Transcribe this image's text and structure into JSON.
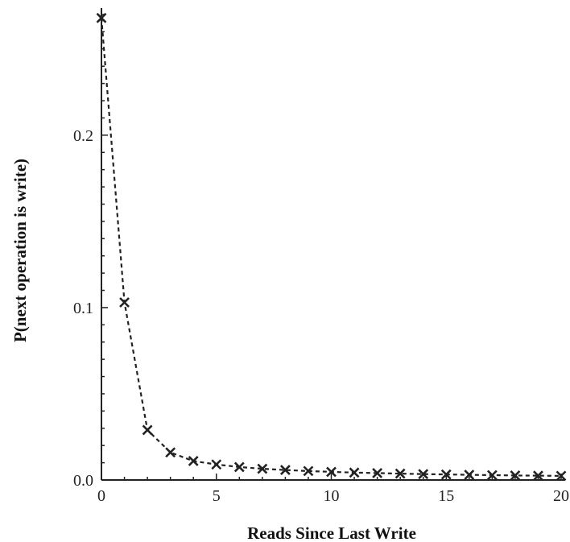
{
  "chart_data": {
    "type": "line",
    "title": "",
    "xlabel": "Reads Since Last Write",
    "ylabel": "P(next operation is write)",
    "xlim": [
      0,
      20
    ],
    "ylim": [
      0,
      0.27
    ],
    "x_ticks": [
      0,
      5,
      10,
      15,
      20
    ],
    "x_tick_labels": [
      "0",
      "5",
      "10",
      "15",
      "20"
    ],
    "y_ticks": [
      0.0,
      0.1,
      0.2
    ],
    "y_tick_labels": [
      "0.0",
      "0.1",
      "0.2"
    ],
    "grid": false,
    "series": [
      {
        "marker": "x",
        "line_style": "dashed",
        "color": "#222222",
        "x": [
          0,
          1,
          2,
          3,
          4,
          5,
          6,
          7,
          8,
          9,
          10,
          11,
          12,
          13,
          14,
          15,
          16,
          17,
          18,
          19,
          20
        ],
        "y": [
          0.268,
          0.103,
          0.029,
          0.016,
          0.011,
          0.009,
          0.0075,
          0.0065,
          0.0058,
          0.0052,
          0.0047,
          0.0043,
          0.004,
          0.0037,
          0.0034,
          0.0032,
          0.003,
          0.0028,
          0.0026,
          0.0025,
          0.0024
        ]
      }
    ]
  }
}
